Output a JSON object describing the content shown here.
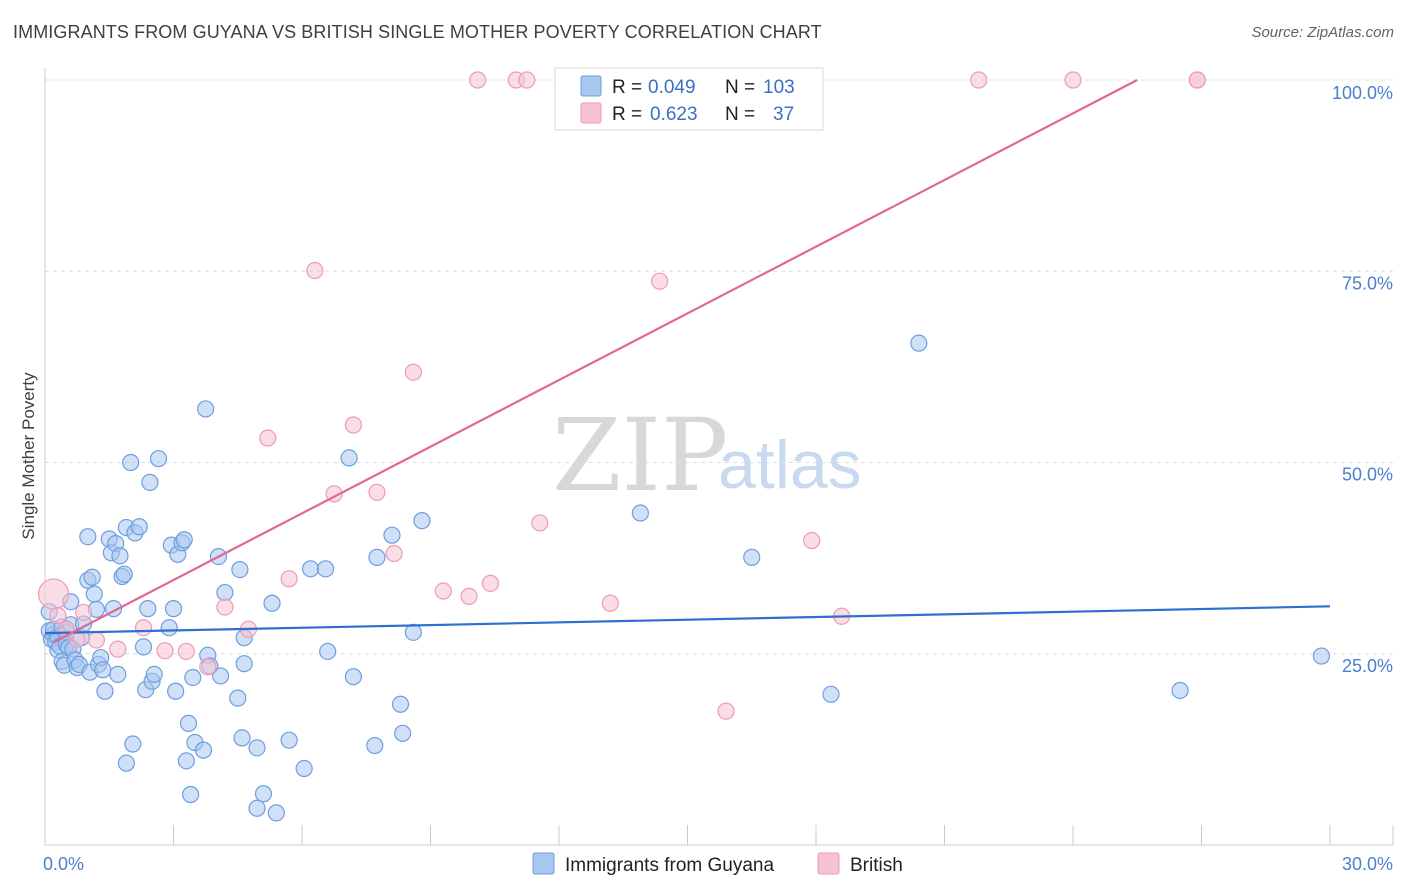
{
  "header": {
    "title": "IMMIGRANTS FROM GUYANA VS BRITISH SINGLE MOTHER POVERTY CORRELATION CHART",
    "source": "Source: ZipAtlas.com"
  },
  "watermark": {
    "zip": "ZIP",
    "atlas": "atlas"
  },
  "legend": {
    "rows": [
      {
        "r_label": "R =",
        "r_value": "0.049",
        "n_label": "N =",
        "n_value": "103"
      },
      {
        "r_label": "R =",
        "r_value": "0.623",
        "n_label": "N =",
        "n_value": "37"
      }
    ]
  },
  "colors": {
    "guyana_fill": "#a9c6ef",
    "guyana_stroke": "#6d9ee0",
    "guyana_line": "#2f6fcf",
    "british_fill": "#f6c2d3",
    "british_stroke": "#ee9ab5",
    "british_line": "#e06892",
    "grid": "#d9dde3",
    "axis_text": "#4a7fcf"
  },
  "chart_data": {
    "type": "scatter",
    "title": "IMMIGRANTS FROM GUYANA VS BRITISH SINGLE MOTHER POVERTY CORRELATION CHART",
    "xlabel": "",
    "ylabel": "Single Mother Poverty",
    "xlim": [
      0,
      30
    ],
    "ylim": [
      0,
      100
    ],
    "x_tick_labels": [
      "0.0%",
      "30.0%"
    ],
    "y_tick_labels": [
      "25.0%",
      "50.0%",
      "75.0%",
      "100.0%"
    ],
    "y_tick_values": [
      25,
      50,
      75,
      100
    ],
    "series": [
      {
        "name": "Immigrants from Guyana",
        "r": 0.049,
        "n": 103,
        "trend": {
          "x": [
            0,
            30
          ],
          "y": [
            27.7,
            31.2
          ]
        },
        "points": [
          [
            0.1,
            30.5
          ],
          [
            0.1,
            28.0
          ],
          [
            0.15,
            26.9
          ],
          [
            0.2,
            27.5
          ],
          [
            0.2,
            28.2
          ],
          [
            0.25,
            26.5
          ],
          [
            0.3,
            25.5
          ],
          [
            0.3,
            27.2
          ],
          [
            0.35,
            26.0
          ],
          [
            0.4,
            24.0
          ],
          [
            0.4,
            28.5
          ],
          [
            0.45,
            23.5
          ],
          [
            0.5,
            27.8
          ],
          [
            0.5,
            26.2
          ],
          [
            0.55,
            25.8
          ],
          [
            0.6,
            31.8
          ],
          [
            0.6,
            28.8
          ],
          [
            0.65,
            25.6
          ],
          [
            0.7,
            24.2
          ],
          [
            0.75,
            23.2
          ],
          [
            0.8,
            23.6
          ],
          [
            0.85,
            27.1
          ],
          [
            0.9,
            28.9
          ],
          [
            1.0,
            40.3
          ],
          [
            1.0,
            34.6
          ],
          [
            1.05,
            22.6
          ],
          [
            1.1,
            35.0
          ],
          [
            1.15,
            32.8
          ],
          [
            1.2,
            30.8
          ],
          [
            1.25,
            23.6
          ],
          [
            1.3,
            24.5
          ],
          [
            1.35,
            22.9
          ],
          [
            1.4,
            20.1
          ],
          [
            1.5,
            40.0
          ],
          [
            1.55,
            38.2
          ],
          [
            1.6,
            30.9
          ],
          [
            1.65,
            39.4
          ],
          [
            1.7,
            22.3
          ],
          [
            1.75,
            37.8
          ],
          [
            1.8,
            35.1
          ],
          [
            1.85,
            35.4
          ],
          [
            1.9,
            41.5
          ],
          [
            1.9,
            10.7
          ],
          [
            2.0,
            50.0
          ],
          [
            2.05,
            13.2
          ],
          [
            2.1,
            40.8
          ],
          [
            2.2,
            41.6
          ],
          [
            2.3,
            25.9
          ],
          [
            2.35,
            20.3
          ],
          [
            2.4,
            30.9
          ],
          [
            2.45,
            47.4
          ],
          [
            2.5,
            21.4
          ],
          [
            2.55,
            22.3
          ],
          [
            2.65,
            50.5
          ],
          [
            2.9,
            28.4
          ],
          [
            2.95,
            39.2
          ],
          [
            3.0,
            30.9
          ],
          [
            3.05,
            20.1
          ],
          [
            3.1,
            38.0
          ],
          [
            3.2,
            39.5
          ],
          [
            3.25,
            39.9
          ],
          [
            3.3,
            11.0
          ],
          [
            3.35,
            15.9
          ],
          [
            3.4,
            6.6
          ],
          [
            3.45,
            21.9
          ],
          [
            3.5,
            13.4
          ],
          [
            3.7,
            12.4
          ],
          [
            3.75,
            57.0
          ],
          [
            3.8,
            24.8
          ],
          [
            3.85,
            23.4
          ],
          [
            4.05,
            37.7
          ],
          [
            4.1,
            22.1
          ],
          [
            4.2,
            33.0
          ],
          [
            4.5,
            19.2
          ],
          [
            4.55,
            36.0
          ],
          [
            4.6,
            14.0
          ],
          [
            4.65,
            27.1
          ],
          [
            4.65,
            23.7
          ],
          [
            4.95,
            12.7
          ],
          [
            4.95,
            4.8
          ],
          [
            5.1,
            6.7
          ],
          [
            5.3,
            31.6
          ],
          [
            5.4,
            4.2
          ],
          [
            5.7,
            13.7
          ],
          [
            6.05,
            10.0
          ],
          [
            6.2,
            36.1
          ],
          [
            6.55,
            36.1
          ],
          [
            6.6,
            25.3
          ],
          [
            7.1,
            50.6
          ],
          [
            7.2,
            22.0
          ],
          [
            7.7,
            13.0
          ],
          [
            7.75,
            37.6
          ],
          [
            8.1,
            40.5
          ],
          [
            8.3,
            18.4
          ],
          [
            8.35,
            14.6
          ],
          [
            8.6,
            27.8
          ],
          [
            8.8,
            42.4
          ],
          [
            13.9,
            43.4
          ],
          [
            16.5,
            37.6
          ],
          [
            18.35,
            19.7
          ],
          [
            20.4,
            65.6
          ],
          [
            26.5,
            20.2
          ],
          [
            29.8,
            24.7
          ]
        ]
      },
      {
        "name": "British",
        "r": 0.623,
        "n": 37,
        "trend": {
          "x": [
            0.2,
            25.5
          ],
          "y": [
            26.5,
            100.0
          ]
        },
        "points": [
          [
            0.2,
            32.8
          ],
          [
            0.3,
            30.0
          ],
          [
            0.5,
            28.2
          ],
          [
            0.75,
            26.9
          ],
          [
            0.9,
            30.4
          ],
          [
            1.2,
            26.8
          ],
          [
            1.7,
            25.6
          ],
          [
            2.3,
            28.4
          ],
          [
            2.8,
            25.4
          ],
          [
            3.3,
            25.3
          ],
          [
            3.8,
            23.3
          ],
          [
            4.2,
            31.1
          ],
          [
            4.75,
            28.2
          ],
          [
            5.2,
            53.2
          ],
          [
            5.7,
            34.8
          ],
          [
            6.3,
            75.1
          ],
          [
            6.75,
            45.9
          ],
          [
            7.2,
            54.9
          ],
          [
            7.75,
            46.1
          ],
          [
            8.15,
            38.1
          ],
          [
            8.6,
            61.8
          ],
          [
            9.3,
            33.2
          ],
          [
            9.9,
            32.5
          ],
          [
            10.1,
            100.0
          ],
          [
            10.4,
            34.2
          ],
          [
            11.0,
            100.0
          ],
          [
            11.25,
            100.0
          ],
          [
            11.55,
            42.1
          ],
          [
            13.2,
            31.6
          ],
          [
            14.35,
            73.7
          ],
          [
            15.9,
            17.5
          ],
          [
            17.9,
            39.8
          ],
          [
            18.6,
            29.9
          ],
          [
            21.8,
            100.0
          ],
          [
            24.0,
            100.0
          ],
          [
            26.9,
            100.0
          ],
          [
            26.9,
            100.0
          ]
        ]
      }
    ]
  },
  "bottom_legend": [
    "Immigrants from Guyana",
    "British"
  ]
}
